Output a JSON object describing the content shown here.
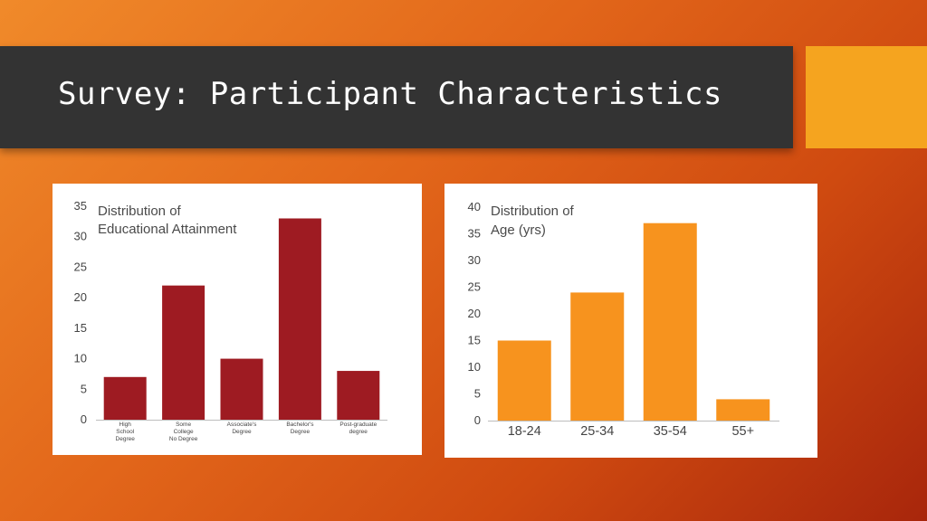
{
  "slide": {
    "title": "Survey: Participant Characteristics",
    "colors": {
      "title_bar": "#333333",
      "accent": "#f5a41f",
      "background": "#e2661a"
    }
  },
  "chart_data": [
    {
      "type": "bar",
      "title_lines": [
        "Distribution of",
        "Educational Attainment"
      ],
      "categories": [
        [
          "High",
          "School",
          "Degree"
        ],
        [
          "Some",
          "College",
          "No Degree"
        ],
        [
          "Associate's",
          "Degree"
        ],
        [
          "Bachelor's",
          "Degree"
        ],
        [
          "Post-graduate",
          "degree"
        ]
      ],
      "values": [
        7,
        22,
        10,
        33,
        8
      ],
      "ylim": [
        0,
        35
      ],
      "yticks": [
        0,
        5,
        10,
        15,
        20,
        25,
        30,
        35
      ],
      "bar_color": "#9e1b22",
      "grid": false,
      "xlabel": "",
      "ylabel": ""
    },
    {
      "type": "bar",
      "title_lines": [
        "Distribution of",
        "Age (yrs)"
      ],
      "categories": [
        [
          "18-24"
        ],
        [
          "25-34"
        ],
        [
          "35-54"
        ],
        [
          "55+"
        ]
      ],
      "values": [
        15,
        24,
        37,
        4
      ],
      "ylim": [
        0,
        40
      ],
      "yticks": [
        0,
        5,
        10,
        15,
        20,
        25,
        30,
        35,
        40
      ],
      "bar_color": "#f7931e",
      "grid": false,
      "xlabel": "",
      "ylabel": ""
    }
  ]
}
